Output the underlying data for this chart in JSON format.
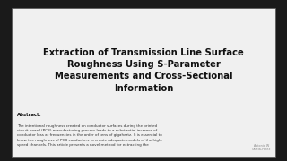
{
  "bg_color": "#1a1a1a",
  "slide_bg": "#f0f0f0",
  "title": "Extraction of Transmission Line Surface\nRoughness Using S-Parameter\nMeasurements and Cross-Sectional\nInformation",
  "title_color": "#111111",
  "title_fontsize": 7.2,
  "title_bold": true,
  "abstract_label": "Abstract:",
  "abstract_label_fontsize": 3.8,
  "abstract_text": "The intentional roughness created on conductor surfaces during the printed\ncircuit board (PCB) manufacturing process leads to a substantial increase of\nconductor loss at frequencies in the order of tens of gigahertz. It is essential to\nknow the roughness of PCB conductors to create adequate models of the high-\nspeed channels. This article presents a novel method for extracting the",
  "abstract_fontsize": 3.0,
  "watermark_text": "Antonio W\nGarcia-Perez",
  "watermark_fontsize": 2.4,
  "watermark_color": "#888888"
}
